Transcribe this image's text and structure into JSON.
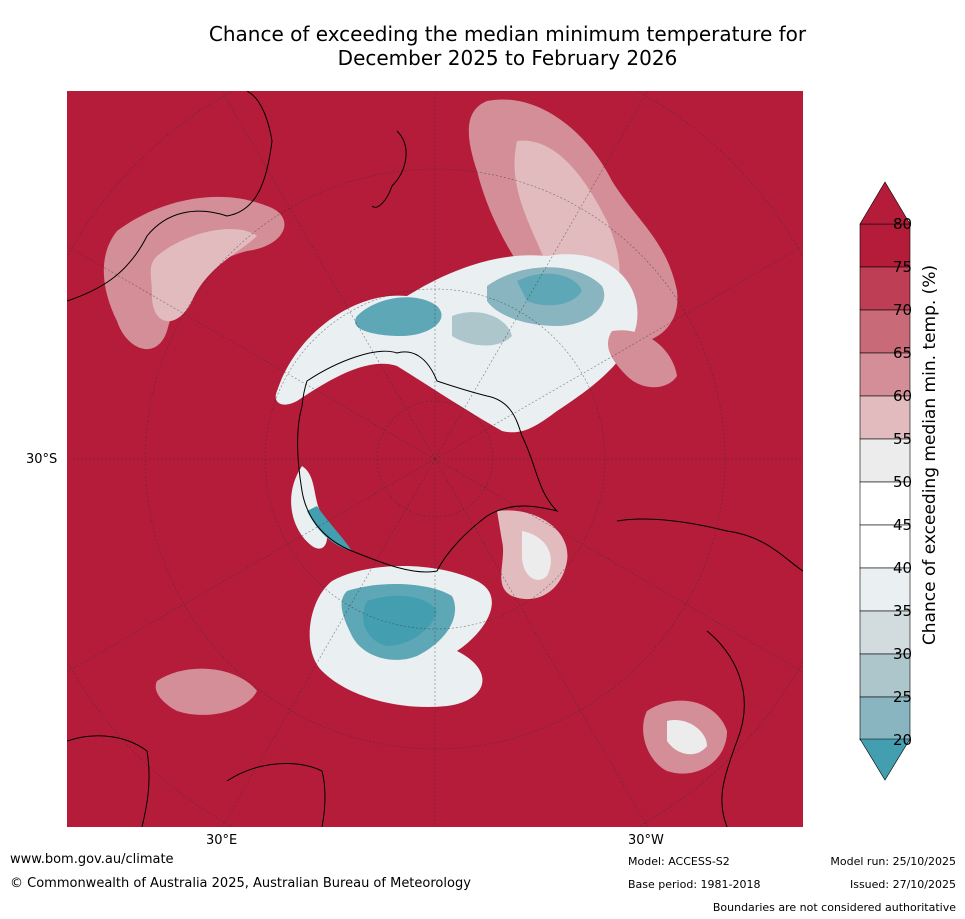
{
  "title": {
    "line1": "Chance of exceeding the median minimum temperature for",
    "line2": "December 2025 to February 2026"
  },
  "map": {
    "lat_label": "30°S",
    "lon_label_left": "30°E",
    "lon_label_right": "30°W",
    "colors": {
      "c80": "#b41c3a",
      "c75": "#be3e55",
      "c70": "#c86a78",
      "c65": "#d48e98",
      "c60": "#e2bbbf",
      "c55": "#ececec",
      "c50": "#ffffff",
      "c45": "#ffffff",
      "c40": "#eaeff1",
      "c35": "#d2dcdf",
      "c30": "#acc6cc",
      "c25": "#88b5c0",
      "c20": "#5ea7b6",
      "c15": "#439eb0"
    }
  },
  "colorbar": {
    "label": "Chance of exceeding median min. temp. (%)",
    "ticks": [
      "80",
      "75",
      "70",
      "65",
      "60",
      "55",
      "50",
      "45",
      "40",
      "35",
      "30",
      "25",
      "20"
    ]
  },
  "footer": {
    "website": "www.bom.gov.au/climate",
    "copyright": "© Commonwealth of Australia 2025, Australian Bureau of Meteorology",
    "model": "Model: ACCESS-S2",
    "base_period": "Base period: 1981-2018",
    "model_run": "Model run: 25/10/2025",
    "issued": "Issued: 27/10/2025",
    "disclaimer": "Boundaries are not considered authoritative"
  }
}
